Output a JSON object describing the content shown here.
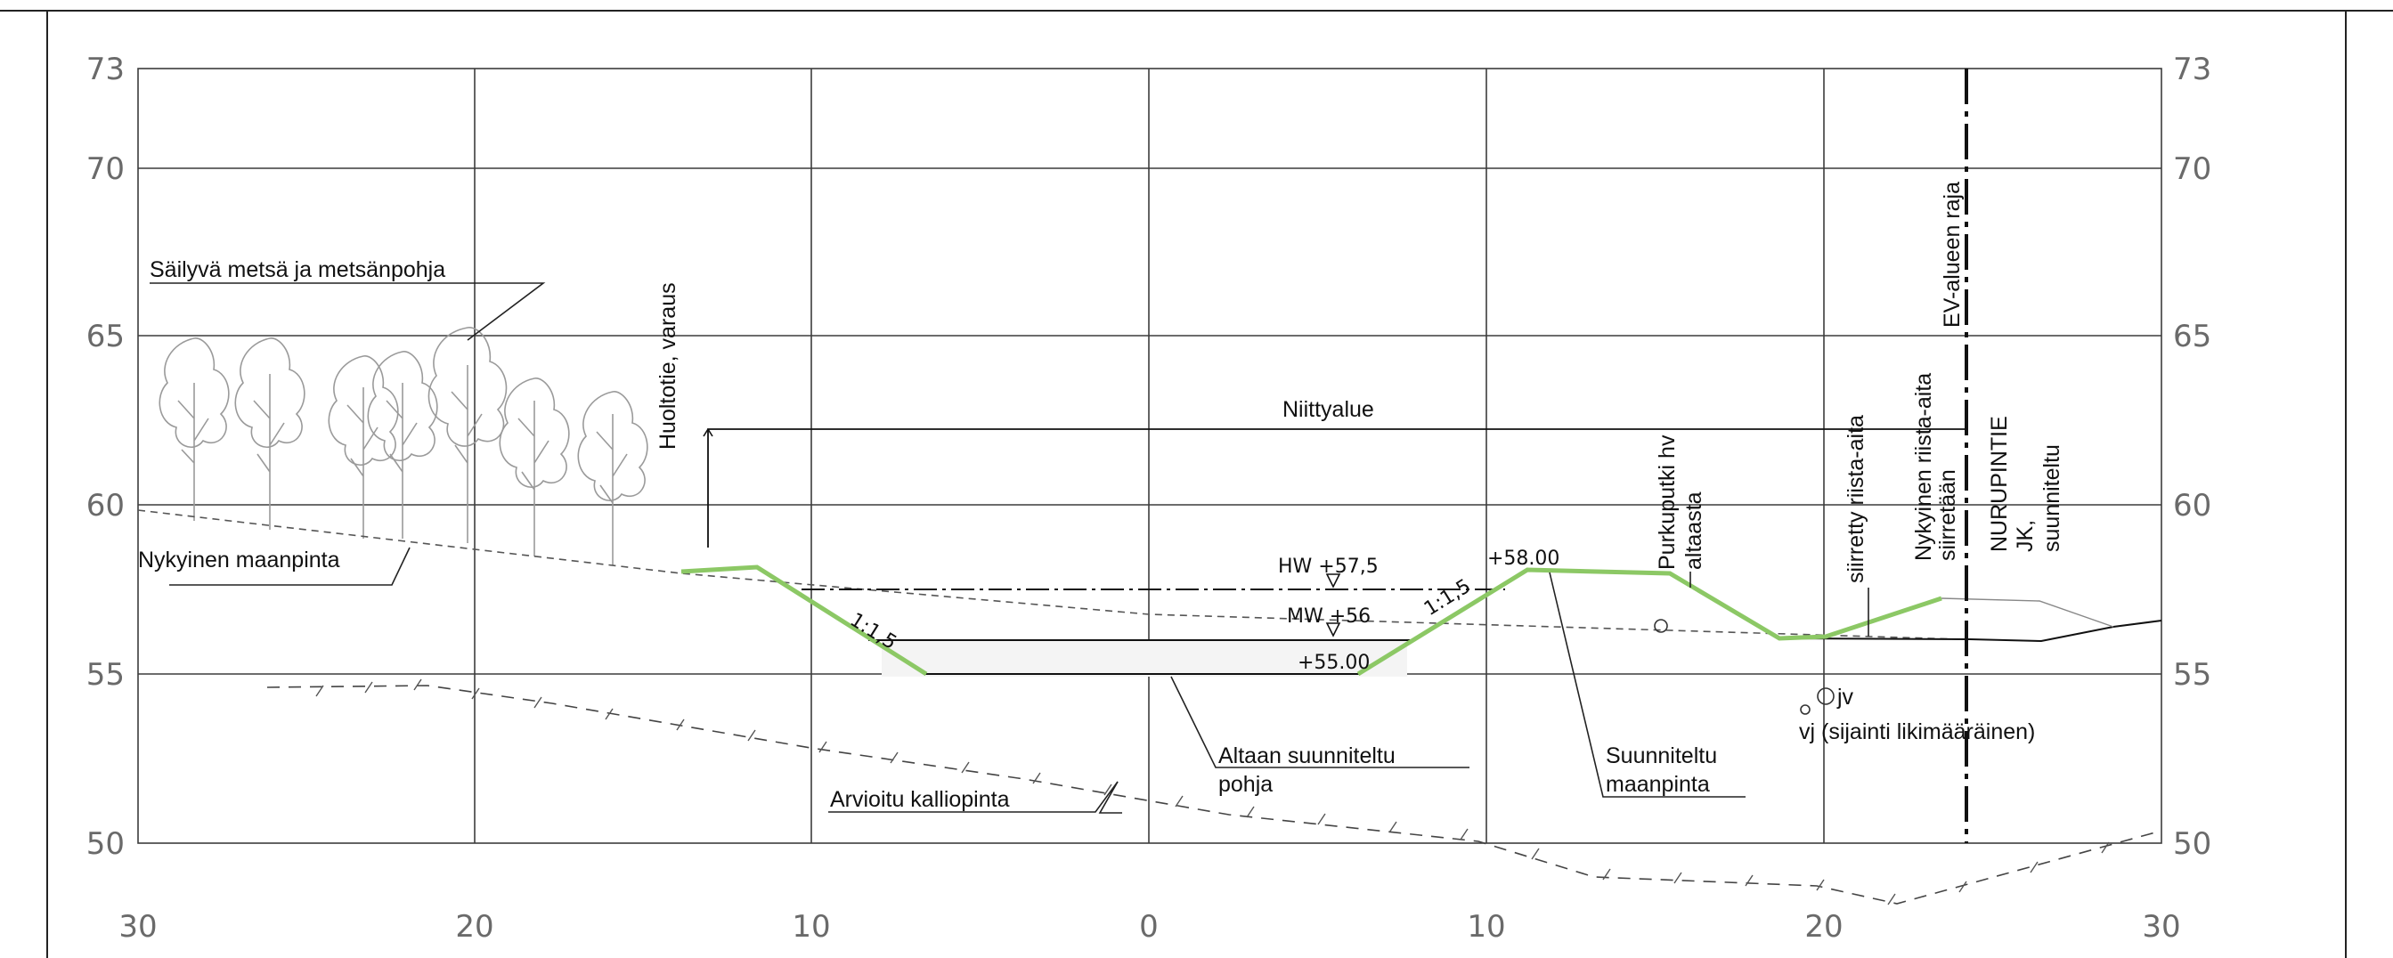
{
  "axis": {
    "y_ticks": [
      "73",
      "70",
      "65",
      "60",
      "55",
      "50"
    ],
    "x_ticks": [
      "30",
      "20",
      "10",
      "0",
      "10",
      "20",
      "30"
    ]
  },
  "labels": {
    "forest": "Säilyvä metsä ja metsänpohja",
    "current_ground": "Nykyinen maanpinta",
    "service_road": "Huoltotie, varaus",
    "meadow": "Niittyalue",
    "hw": "HW +57,5",
    "mw": "MW +56",
    "slope_left": "1:1,5",
    "slope_right": "1:1,5",
    "bottom_level": "+55.00",
    "top_level": "+58.00",
    "drain_pipe": [
      "Purkuputki hv",
      "altaasta"
    ],
    "moved_fence": "siirretty riista-aita",
    "existing_fence": [
      "Nykyinen riista-aita",
      "siirretään"
    ],
    "ev_border": "EV-alueen raja",
    "road": [
      "NURUPINTIE",
      "JK,",
      "suunniteltu"
    ],
    "jv": "jv",
    "vj": "vj (sijainti likimääräinen)",
    "basin_bottom": [
      "Altaan suunniteltu",
      "pohja"
    ],
    "bedrock": "Arvioitu kalliopinta",
    "planned_ground": [
      "Suunniteltu",
      "maanpinta"
    ]
  },
  "colors": {
    "planned_surface": "#8cc865",
    "grid": "#3c3c3c",
    "tick_text": "#6a6a6a"
  }
}
